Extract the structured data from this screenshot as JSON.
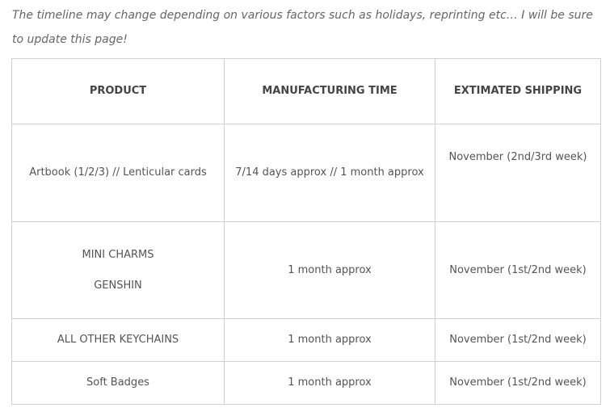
{
  "intro": "The timeline may change depending on various factors such as holidays, reprinting etc… I will be sure to update this page!",
  "table": {
    "headers": [
      "PRODUCT",
      "MANUFACTURING TIME",
      "EXTIMATED SHIPPING"
    ],
    "rows": [
      {
        "product": [
          "Artbook (1/2/3) // Lenticular cards"
        ],
        "manufacturing": "7/14 days approx // 1 month approx",
        "shipping": "November (2nd/3rd week)"
      },
      {
        "product": [
          "MINI CHARMS",
          "GENSHIN"
        ],
        "manufacturing": "1 month approx",
        "shipping": "November (1st/2nd week)"
      },
      {
        "product": [
          "ALL OTHER KEYCHAINS"
        ],
        "manufacturing": "1 month approx",
        "shipping": "November (1st/2nd week)"
      },
      {
        "product": [
          "Soft Badges"
        ],
        "manufacturing": "1 month approx",
        "shipping": "November (1st/2nd week)"
      }
    ]
  }
}
